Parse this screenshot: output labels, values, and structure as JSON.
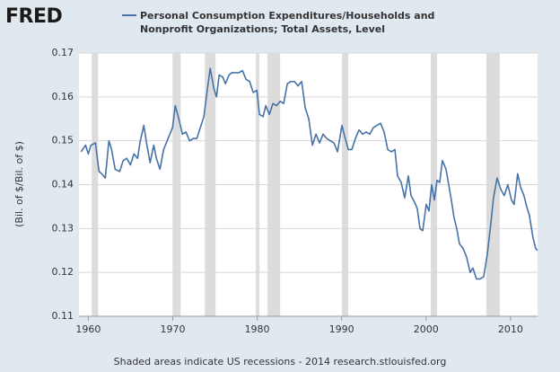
{
  "chart_data": {
    "type": "line",
    "logo": "FRED",
    "y_label": "(Bil. of $/Bil. of $)",
    "footer": "Shaded areas indicate US recessions - 2014 research.stlouisfed.org",
    "xlim": [
      1958.9,
      2013.2
    ],
    "xticks": [
      1960,
      1970,
      1980,
      1990,
      2000,
      2010
    ],
    "ylim": [
      0.11,
      0.17
    ],
    "yticks": [
      0.11,
      0.12,
      0.13,
      0.14,
      0.15,
      0.16,
      0.17
    ],
    "grid": true,
    "recession_color": "#dcdcdc",
    "recessions": [
      [
        1960.42,
        1961.17
      ],
      [
        1969.98,
        1970.93
      ],
      [
        1973.8,
        1975.07
      ],
      [
        1979.85,
        1980.27
      ],
      [
        1981.23,
        1982.72
      ],
      [
        1990.04,
        1990.79
      ],
      [
        2000.55,
        2001.3
      ],
      [
        2007.13,
        2008.73
      ]
    ],
    "x": [
      1959.15,
      1959.68,
      1960.0,
      1960.32,
      1960.85,
      1961.27,
      1961.59,
      1962.02,
      1962.44,
      1962.76,
      1963.18,
      1963.72,
      1964.14,
      1964.56,
      1964.99,
      1965.41,
      1965.84,
      1966.16,
      1966.58,
      1966.9,
      1967.32,
      1967.75,
      1968.07,
      1968.49,
      1968.92,
      1969.45,
      1969.98,
      1970.3,
      1970.72,
      1971.15,
      1971.57,
      1972.0,
      1972.42,
      1972.85,
      1973.27,
      1973.69,
      1974.12,
      1974.44,
      1974.86,
      1975.18,
      1975.5,
      1975.92,
      1976.24,
      1976.67,
      1976.99,
      1977.41,
      1977.83,
      1978.26,
      1978.68,
      1979.11,
      1979.53,
      1979.96,
      1980.27,
      1980.7,
      1981.02,
      1981.44,
      1981.87,
      1982.29,
      1982.72,
      1983.14,
      1983.57,
      1983.99,
      1984.42,
      1984.84,
      1985.27,
      1985.69,
      1986.11,
      1986.54,
      1986.96,
      1987.39,
      1987.81,
      1988.24,
      1988.66,
      1989.09,
      1989.51,
      1990.04,
      1990.36,
      1990.79,
      1991.21,
      1991.63,
      1992.06,
      1992.48,
      1992.91,
      1993.33,
      1993.76,
      1994.18,
      1994.61,
      1995.03,
      1995.46,
      1995.88,
      1996.31,
      1996.62,
      1997.05,
      1997.47,
      1997.9,
      1998.22,
      1998.64,
      1998.96,
      1999.28,
      1999.6,
      2000.02,
      2000.34,
      2000.66,
      2000.98,
      2001.3,
      2001.61,
      2001.93,
      2002.36,
      2002.68,
      2002.99,
      2003.31,
      2003.63,
      2003.95,
      2004.37,
      2004.8,
      2005.22,
      2005.54,
      2005.97,
      2006.39,
      2006.82,
      2007.24,
      2007.66,
      2007.98,
      2008.41,
      2008.83,
      2009.26,
      2009.68,
      2010.11,
      2010.42,
      2010.85,
      2011.17,
      2011.59,
      2011.91,
      2012.23,
      2012.65,
      2012.97,
      2013.18
    ],
    "series": [
      {
        "name": "Personal Consumption Expenditures/Households and Nonprofit Organizations; Total Assets, Level",
        "color": "#4572a7",
        "values": [
          0.1475,
          0.149,
          0.147,
          0.149,
          0.1495,
          0.143,
          0.1425,
          0.1415,
          0.15,
          0.148,
          0.1435,
          0.143,
          0.1455,
          0.146,
          0.1445,
          0.147,
          0.146,
          0.15,
          0.1535,
          0.1495,
          0.145,
          0.149,
          0.146,
          0.1435,
          0.148,
          0.1505,
          0.153,
          0.158,
          0.155,
          0.1515,
          0.152,
          0.15,
          0.1505,
          0.1505,
          0.153,
          0.1555,
          0.162,
          0.1665,
          0.162,
          0.16,
          0.165,
          0.1645,
          0.163,
          0.165,
          0.1655,
          0.1655,
          0.1655,
          0.166,
          0.164,
          0.1635,
          0.161,
          0.1615,
          0.156,
          0.1555,
          0.158,
          0.156,
          0.1585,
          0.158,
          0.159,
          0.1585,
          0.163,
          0.1635,
          0.1635,
          0.1625,
          0.1635,
          0.1575,
          0.155,
          0.149,
          0.1515,
          0.1495,
          0.1515,
          0.1505,
          0.15,
          0.1495,
          0.1475,
          0.1535,
          0.151,
          0.148,
          0.148,
          0.1505,
          0.1525,
          0.1515,
          0.152,
          0.1515,
          0.153,
          0.1535,
          0.154,
          0.152,
          0.148,
          0.1475,
          0.148,
          0.142,
          0.1405,
          0.137,
          0.142,
          0.1375,
          0.136,
          0.1345,
          0.13,
          0.1295,
          0.1355,
          0.134,
          0.14,
          0.1365,
          0.141,
          0.1405,
          0.1455,
          0.1435,
          0.14,
          0.1365,
          0.1325,
          0.13,
          0.1265,
          0.1255,
          0.1235,
          0.12,
          0.121,
          0.1185,
          0.1185,
          0.119,
          0.124,
          0.131,
          0.137,
          0.1415,
          0.139,
          0.1375,
          0.14,
          0.1365,
          0.1355,
          0.1425,
          0.1395,
          0.1375,
          0.135,
          0.133,
          0.128,
          0.1255,
          0.125
        ]
      }
    ]
  }
}
